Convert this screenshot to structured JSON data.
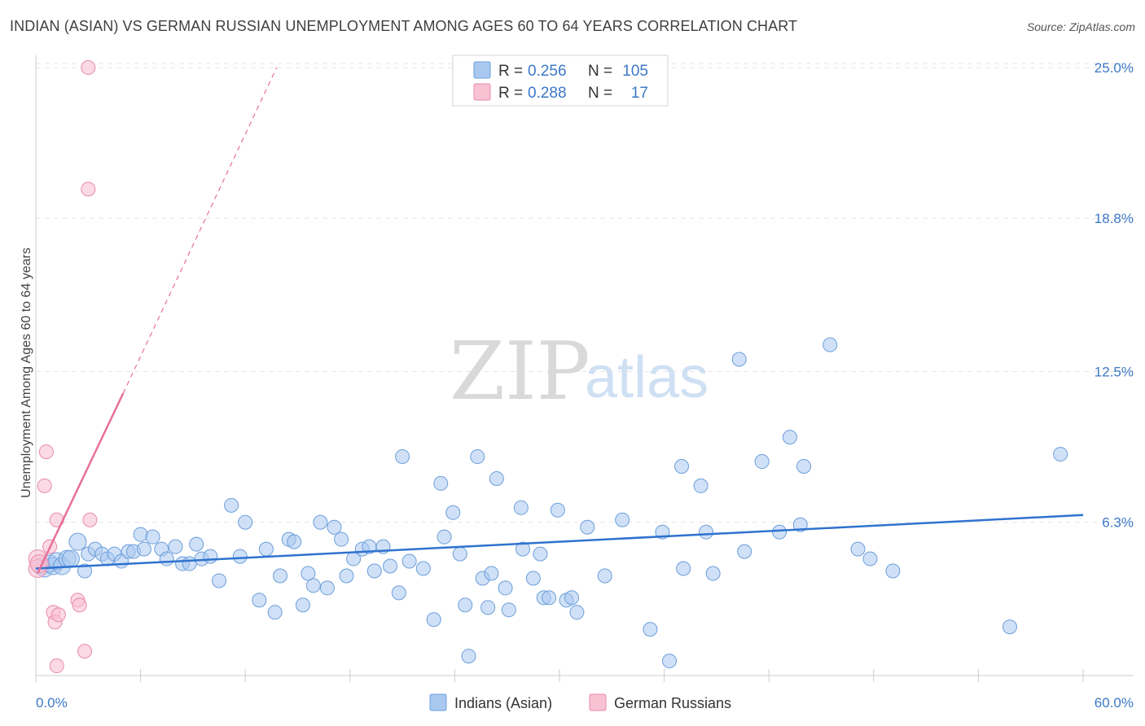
{
  "header": {
    "title": "INDIAN (ASIAN) VS GERMAN RUSSIAN UNEMPLOYMENT AMONG AGES 60 TO 64 YEARS CORRELATION CHART",
    "source": "Source: ZipAtlas.com"
  },
  "watermark": {
    "part1": "ZIP",
    "part2": "atlas"
  },
  "legend_top": {
    "rows": [
      {
        "r_label": "R = ",
        "r_value": "0.256",
        "n_label": "N = ",
        "n_value": "105",
        "color": "#a9c8f0",
        "stroke": "#6b9edb"
      },
      {
        "r_label": "R = ",
        "r_value": "0.288",
        "n_label": "N = ",
        "n_value": "17",
        "color": "#f8c2d3",
        "stroke": "#e88aa8"
      }
    ]
  },
  "legend_bottom": {
    "items": [
      {
        "label": "Indians (Asian)",
        "color": "#a9c8f0",
        "stroke": "#6b9edb"
      },
      {
        "label": "German Russians",
        "color": "#f8c2d3",
        "stroke": "#e88aa8"
      }
    ]
  },
  "colors": {
    "blue_line": "#2f72cf",
    "pink_line": "#e76f9a",
    "blue_dot": "#a9c8f0",
    "pink_dot": "#f8c2d3"
  },
  "chart_data": {
    "type": "scatter",
    "title": "INDIAN (ASIAN) VS GERMAN RUSSIAN UNEMPLOYMENT AMONG AGES 60 TO 64 YEARS CORRELATION CHART",
    "xlabel": "",
    "ylabel": "Unemployment Among Ages 60 to 64 years",
    "xlim": [
      0,
      60
    ],
    "ylim": [
      0,
      25.5
    ],
    "x_tick_labels": [
      "0.0%",
      "60.0%"
    ],
    "y_ticks": [
      6.3,
      12.5,
      18.8,
      25.0
    ],
    "y_tick_labels": [
      "6.3%",
      "12.5%",
      "18.8%",
      "25.0%"
    ],
    "grid": true,
    "legend_position": "top-center",
    "series": [
      {
        "name": "Indians (Asian)",
        "r": 0.256,
        "n": 105,
        "trend": {
          "x": [
            0,
            60
          ],
          "y": [
            4.4,
            6.6
          ]
        },
        "points": [
          [
            0.3,
            4.5
          ],
          [
            0.5,
            4.4
          ],
          [
            0.8,
            4.6
          ],
          [
            1.0,
            4.5
          ],
          [
            1.2,
            4.7
          ],
          [
            1.5,
            4.5
          ],
          [
            1.8,
            4.8
          ],
          [
            2.0,
            4.8
          ],
          [
            2.4,
            5.5
          ],
          [
            2.8,
            4.3
          ],
          [
            3.0,
            5.0
          ],
          [
            3.4,
            5.2
          ],
          [
            3.8,
            5.0
          ],
          [
            4.1,
            4.8
          ],
          [
            4.5,
            5.0
          ],
          [
            4.9,
            4.7
          ],
          [
            5.3,
            5.1
          ],
          [
            5.6,
            5.1
          ],
          [
            6.0,
            5.8
          ],
          [
            6.2,
            5.2
          ],
          [
            6.7,
            5.7
          ],
          [
            7.2,
            5.2
          ],
          [
            7.5,
            4.8
          ],
          [
            8.0,
            5.3
          ],
          [
            8.4,
            4.6
          ],
          [
            8.8,
            4.6
          ],
          [
            9.2,
            5.4
          ],
          [
            9.5,
            4.8
          ],
          [
            10.0,
            4.9
          ],
          [
            10.5,
            3.9
          ],
          [
            11.2,
            7.0
          ],
          [
            11.7,
            4.9
          ],
          [
            12.0,
            6.3
          ],
          [
            12.8,
            3.1
          ],
          [
            13.2,
            5.2
          ],
          [
            13.7,
            2.6
          ],
          [
            14.0,
            4.1
          ],
          [
            14.5,
            5.6
          ],
          [
            14.8,
            5.5
          ],
          [
            15.3,
            2.9
          ],
          [
            15.6,
            4.2
          ],
          [
            15.9,
            3.7
          ],
          [
            16.3,
            6.3
          ],
          [
            16.7,
            3.6
          ],
          [
            17.1,
            6.1
          ],
          [
            17.5,
            5.6
          ],
          [
            17.8,
            4.1
          ],
          [
            18.2,
            4.8
          ],
          [
            18.7,
            5.2
          ],
          [
            19.1,
            5.3
          ],
          [
            19.4,
            4.3
          ],
          [
            19.9,
            5.3
          ],
          [
            20.3,
            4.5
          ],
          [
            20.8,
            3.4
          ],
          [
            21.0,
            9.0
          ],
          [
            21.4,
            4.7
          ],
          [
            22.2,
            4.4
          ],
          [
            22.8,
            2.3
          ],
          [
            23.2,
            7.9
          ],
          [
            23.4,
            5.7
          ],
          [
            23.9,
            6.7
          ],
          [
            24.3,
            5.0
          ],
          [
            24.6,
            2.9
          ],
          [
            25.3,
            9.0
          ],
          [
            25.6,
            4.0
          ],
          [
            25.9,
            2.8
          ],
          [
            26.1,
            4.2
          ],
          [
            26.4,
            8.1
          ],
          [
            26.9,
            3.6
          ],
          [
            27.1,
            2.7
          ],
          [
            27.8,
            6.9
          ],
          [
            27.9,
            5.2
          ],
          [
            28.5,
            4.0
          ],
          [
            28.9,
            5.0
          ],
          [
            29.1,
            3.2
          ],
          [
            29.4,
            3.2
          ],
          [
            29.9,
            6.8
          ],
          [
            30.4,
            3.1
          ],
          [
            30.7,
            3.2
          ],
          [
            31.0,
            2.6
          ],
          [
            31.6,
            6.1
          ],
          [
            32.6,
            4.1
          ],
          [
            33.6,
            6.4
          ],
          [
            35.2,
            1.9
          ],
          [
            35.9,
            5.9
          ],
          [
            36.3,
            0.6
          ],
          [
            37.0,
            8.6
          ],
          [
            37.1,
            4.4
          ],
          [
            38.1,
            7.8
          ],
          [
            38.4,
            5.9
          ],
          [
            38.8,
            4.2
          ],
          [
            40.3,
            13.0
          ],
          [
            40.6,
            5.1
          ],
          [
            41.6,
            8.8
          ],
          [
            42.6,
            5.9
          ],
          [
            43.2,
            9.8
          ],
          [
            43.8,
            6.2
          ],
          [
            44.0,
            8.6
          ],
          [
            45.5,
            13.6
          ],
          [
            47.1,
            5.2
          ],
          [
            47.8,
            4.8
          ],
          [
            49.1,
            4.3
          ],
          [
            55.8,
            2.0
          ],
          [
            58.7,
            9.1
          ],
          [
            24.8,
            0.8
          ]
        ]
      },
      {
        "name": "German Russians",
        "r": 0.288,
        "n": 17,
        "trend_solid": {
          "x": [
            0.1,
            5.0
          ],
          "y": [
            4.2,
            11.6
          ]
        },
        "trend_dashed": {
          "x": [
            5.0,
            13.8
          ],
          "y": [
            11.6,
            25.0
          ]
        },
        "points": [
          [
            0.1,
            4.8
          ],
          [
            0.1,
            4.4
          ],
          [
            0.2,
            4.6
          ],
          [
            0.5,
            7.8
          ],
          [
            0.6,
            9.2
          ],
          [
            0.8,
            5.3
          ],
          [
            1.0,
            2.6
          ],
          [
            1.1,
            2.2
          ],
          [
            1.2,
            6.4
          ],
          [
            1.3,
            2.5
          ],
          [
            2.4,
            3.1
          ],
          [
            2.5,
            2.9
          ],
          [
            2.8,
            1.0
          ],
          [
            3.1,
            6.4
          ],
          [
            3.0,
            20.0
          ],
          [
            3.0,
            25.0
          ],
          [
            1.2,
            0.4
          ]
        ]
      }
    ]
  }
}
